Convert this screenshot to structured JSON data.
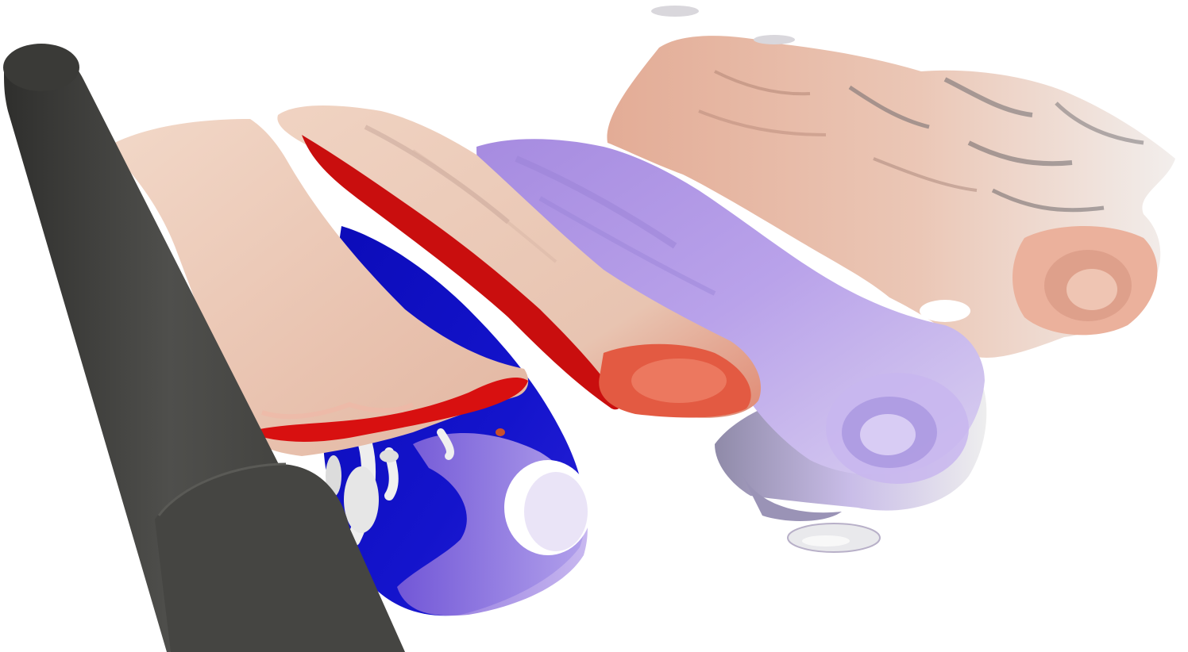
{
  "scene": {
    "background_color": "#ffffff",
    "objects": [
      {
        "name": "cylinder",
        "color": "#4a4a47"
      },
      {
        "name": "vortex-tube-1-cap",
        "color": "#edc9b6"
      },
      {
        "name": "vortex-tube-1-side",
        "color": "#d40808"
      },
      {
        "name": "inner-blue-vortex",
        "color": "#1010c8"
      },
      {
        "name": "lavender-vortex-tube",
        "color": "#b39be6"
      },
      {
        "name": "vortex-tube-2",
        "color": "#ebc8b6"
      },
      {
        "name": "far-wake-structure",
        "color": "#e8b9a4"
      },
      {
        "name": "white-fragments",
        "color": "#eeeeee"
      }
    ]
  }
}
